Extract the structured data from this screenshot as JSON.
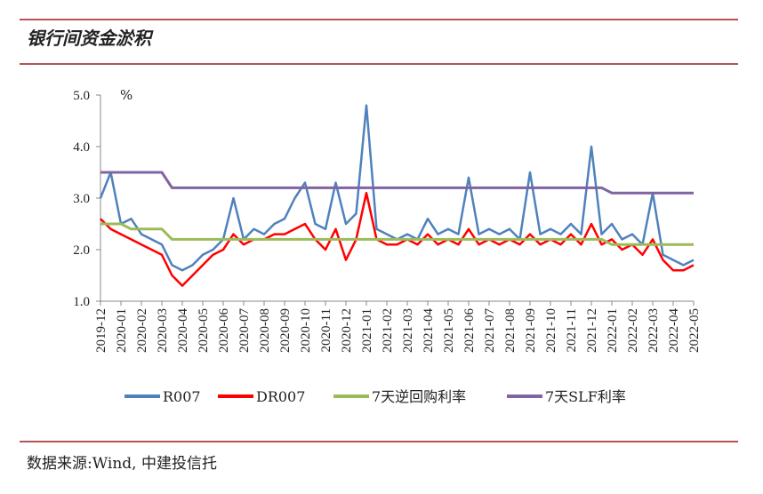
{
  "chart_data": {
    "type": "line",
    "title": "银行间资金淤积",
    "source": "数据来源:Wind, 中建投信托",
    "y_label": "%",
    "x": [
      0,
      0.5,
      1,
      1.5,
      2,
      2.5,
      3,
      3.5,
      4,
      4.5,
      5,
      5.5,
      6,
      6.5,
      7,
      7.5,
      8,
      8.5,
      9,
      9.5,
      10,
      10.5,
      11,
      11.5,
      12,
      12.5,
      13,
      13.5,
      14,
      14.5,
      15,
      15.5,
      16,
      16.5,
      17,
      17.5,
      18,
      18.5,
      19,
      19.5,
      20,
      20.5,
      21,
      21.5,
      22,
      22.5,
      23,
      23.5,
      24,
      24.5,
      25,
      25.5,
      26,
      26.5,
      27,
      27.5,
      28,
      28.5,
      29
    ],
    "xlim": [
      0,
      29
    ],
    "xticks": [
      {
        "value": 0,
        "label": "2019-12"
      },
      {
        "value": 1,
        "label": "2020-01"
      },
      {
        "value": 2,
        "label": "2020-02"
      },
      {
        "value": 3,
        "label": "2020-03"
      },
      {
        "value": 4,
        "label": "2020-04"
      },
      {
        "value": 5,
        "label": "2020-05"
      },
      {
        "value": 6,
        "label": "2020-06"
      },
      {
        "value": 7,
        "label": "2020-07"
      },
      {
        "value": 8,
        "label": "2020-08"
      },
      {
        "value": 9,
        "label": "2020-09"
      },
      {
        "value": 10,
        "label": "2020-10"
      },
      {
        "value": 11,
        "label": "2020-11"
      },
      {
        "value": 12,
        "label": "2020-12"
      },
      {
        "value": 13,
        "label": "2021-01"
      },
      {
        "value": 14,
        "label": "2021-02"
      },
      {
        "value": 15,
        "label": "2021-03"
      },
      {
        "value": 16,
        "label": "2021-04"
      },
      {
        "value": 17,
        "label": "2021-05"
      },
      {
        "value": 18,
        "label": "2021-06"
      },
      {
        "value": 19,
        "label": "2021-07"
      },
      {
        "value": 20,
        "label": "2021-08"
      },
      {
        "value": 21,
        "label": "2021-09"
      },
      {
        "value": 22,
        "label": "2021-10"
      },
      {
        "value": 23,
        "label": "2021-11"
      },
      {
        "value": 24,
        "label": "2021-12"
      },
      {
        "value": 25,
        "label": "2022-01"
      },
      {
        "value": 26,
        "label": "2022-02"
      },
      {
        "value": 27,
        "label": "2022-03"
      },
      {
        "value": 28,
        "label": "2022-04"
      },
      {
        "value": 29,
        "label": "2022-05"
      }
    ],
    "ylim": [
      1,
      5
    ],
    "yticks": [
      {
        "value": 1,
        "label": "1.0"
      },
      {
        "value": 2,
        "label": "2.0"
      },
      {
        "value": 3,
        "label": "3.0"
      },
      {
        "value": 4,
        "label": "4.0"
      },
      {
        "value": 5,
        "label": "5.0"
      }
    ],
    "grid": false,
    "legend": "bottom",
    "series": [
      {
        "name": "R007",
        "color": "#4f81bd",
        "values": [
          3.0,
          3.5,
          2.5,
          2.6,
          2.3,
          2.2,
          2.1,
          1.7,
          1.6,
          1.7,
          1.9,
          2.0,
          2.2,
          3.0,
          2.2,
          2.4,
          2.3,
          2.5,
          2.6,
          3.0,
          3.3,
          2.5,
          2.4,
          3.3,
          2.5,
          2.7,
          4.8,
          2.4,
          2.3,
          2.2,
          2.3,
          2.2,
          2.6,
          2.3,
          2.4,
          2.3,
          3.4,
          2.3,
          2.4,
          2.3,
          2.4,
          2.2,
          3.5,
          2.3,
          2.4,
          2.3,
          2.5,
          2.3,
          4.0,
          2.3,
          2.5,
          2.2,
          2.3,
          2.1,
          3.1,
          1.9,
          1.8,
          1.7,
          1.8
        ]
      },
      {
        "name": "DR007",
        "color": "#ff0000",
        "values": [
          2.6,
          2.4,
          2.3,
          2.2,
          2.1,
          2.0,
          1.9,
          1.5,
          1.3,
          1.5,
          1.7,
          1.9,
          2.0,
          2.3,
          2.1,
          2.2,
          2.2,
          2.3,
          2.3,
          2.4,
          2.5,
          2.2,
          2.0,
          2.4,
          1.8,
          2.2,
          3.1,
          2.2,
          2.1,
          2.1,
          2.2,
          2.1,
          2.3,
          2.1,
          2.2,
          2.1,
          2.4,
          2.1,
          2.2,
          2.1,
          2.2,
          2.1,
          2.3,
          2.1,
          2.2,
          2.1,
          2.3,
          2.1,
          2.5,
          2.1,
          2.2,
          2.0,
          2.1,
          1.9,
          2.2,
          1.8,
          1.6,
          1.6,
          1.7
        ]
      },
      {
        "name": "7天逆回购利率",
        "color": "#9bbb59",
        "values": [
          2.5,
          2.5,
          2.5,
          2.4,
          2.4,
          2.4,
          2.4,
          2.2,
          2.2,
          2.2,
          2.2,
          2.2,
          2.2,
          2.2,
          2.2,
          2.2,
          2.2,
          2.2,
          2.2,
          2.2,
          2.2,
          2.2,
          2.2,
          2.2,
          2.2,
          2.2,
          2.2,
          2.2,
          2.2,
          2.2,
          2.2,
          2.2,
          2.2,
          2.2,
          2.2,
          2.2,
          2.2,
          2.2,
          2.2,
          2.2,
          2.2,
          2.2,
          2.2,
          2.2,
          2.2,
          2.2,
          2.2,
          2.2,
          2.2,
          2.2,
          2.1,
          2.1,
          2.1,
          2.1,
          2.1,
          2.1,
          2.1,
          2.1,
          2.1
        ]
      },
      {
        "name": "7天SLF利率",
        "color": "#8064a2",
        "values": [
          3.5,
          3.5,
          3.5,
          3.5,
          3.5,
          3.5,
          3.5,
          3.2,
          3.2,
          3.2,
          3.2,
          3.2,
          3.2,
          3.2,
          3.2,
          3.2,
          3.2,
          3.2,
          3.2,
          3.2,
          3.2,
          3.2,
          3.2,
          3.2,
          3.2,
          3.2,
          3.2,
          3.2,
          3.2,
          3.2,
          3.2,
          3.2,
          3.2,
          3.2,
          3.2,
          3.2,
          3.2,
          3.2,
          3.2,
          3.2,
          3.2,
          3.2,
          3.2,
          3.2,
          3.2,
          3.2,
          3.2,
          3.2,
          3.2,
          3.2,
          3.1,
          3.1,
          3.1,
          3.1,
          3.1,
          3.1,
          3.1,
          3.1,
          3.1
        ]
      }
    ]
  }
}
